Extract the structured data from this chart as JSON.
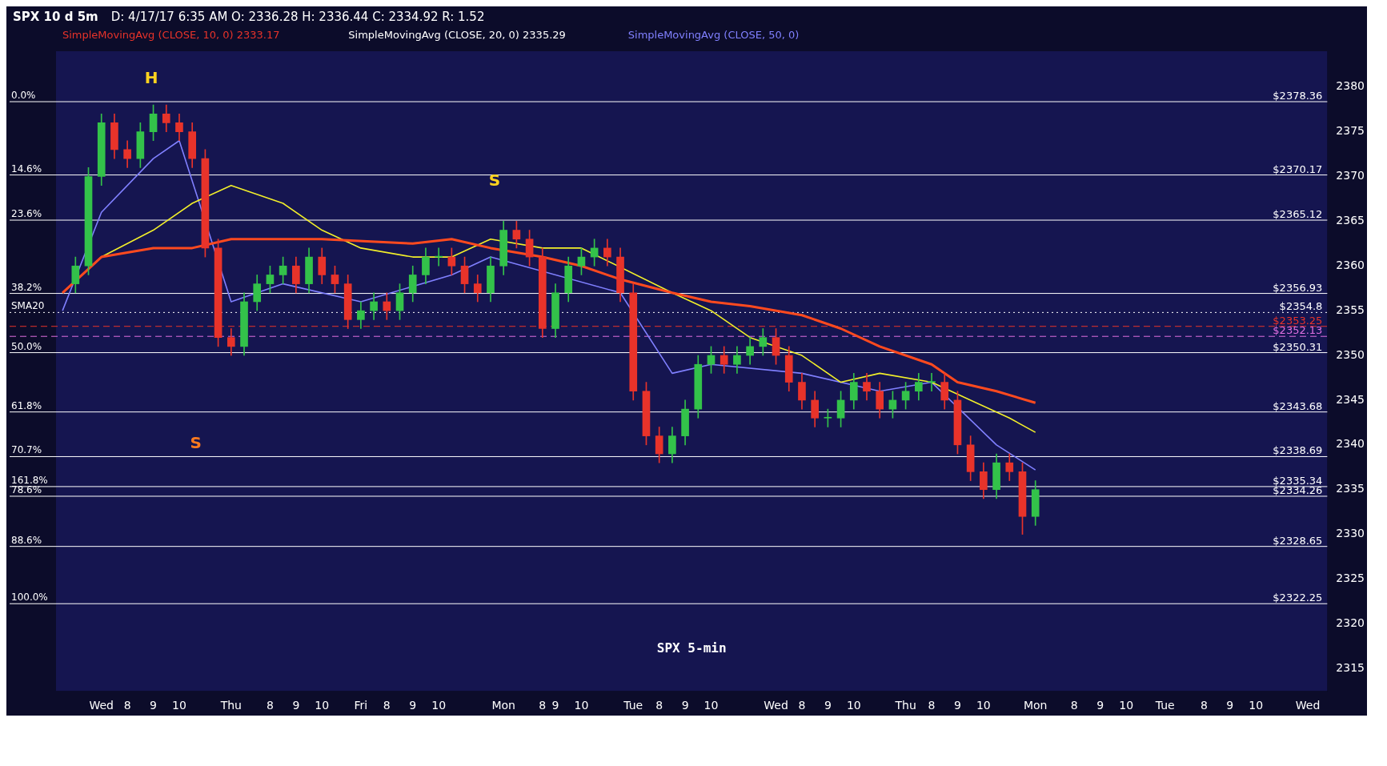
{
  "chart_data": {
    "type": "candlestick",
    "title": "SPX 10 d 5m",
    "subtitle": "D: 4/17/17 6:35 AM O: 2336.28 H: 2336.44 C: 2334.92 R: 1.52",
    "categories": [
      null,
      null,
      null,
      "Wed",
      null,
      "8",
      null,
      "9",
      null,
      "10",
      null,
      null,
      null,
      "Thu",
      null,
      null,
      "8",
      null,
      "9",
      null,
      "10",
      null,
      null,
      "Fri",
      null,
      "8",
      null,
      "9",
      null,
      "10",
      null,
      null,
      null,
      null,
      "Mon",
      null,
      null,
      "8",
      "9",
      null,
      "10",
      null,
      null,
      null,
      "Tue",
      null,
      "8",
      null,
      "9",
      null,
      "10",
      null,
      null,
      null,
      null,
      "Wed",
      null,
      "8",
      null,
      "9",
      null,
      "10",
      null,
      null,
      null,
      "Thu",
      null,
      "8",
      null,
      "9",
      null,
      "10",
      null,
      null,
      null,
      "Mon",
      null,
      null,
      "8",
      null,
      "9",
      null,
      "10",
      null,
      null,
      "Tue",
      null,
      null,
      "8",
      null,
      "9",
      null,
      "10",
      null,
      null,
      null,
      "Wed",
      null
    ],
    "ohlc": [
      null,
      [
        2358,
        2361,
        2357,
        2360
      ],
      [
        2360,
        2371,
        2359,
        2370
      ],
      [
        2370,
        2377,
        2369,
        2376
      ],
      [
        2376,
        2377,
        2372,
        2373
      ],
      [
        2373,
        2374,
        2371,
        2372
      ],
      [
        2372,
        2376,
        2371,
        2375
      ],
      [
        2375,
        2378,
        2374,
        2377
      ],
      [
        2377,
        2378,
        2375,
        2376
      ],
      [
        2376,
        2377,
        2374,
        2375
      ],
      [
        2375,
        2376,
        2371,
        2372
      ],
      [
        2372,
        2373,
        2361,
        2362
      ],
      [
        2362,
        2363,
        2351,
        2352
      ],
      [
        2352,
        2353,
        2350,
        2351
      ],
      [
        2351,
        2357,
        2350,
        2356
      ],
      [
        2356,
        2359,
        2355,
        2358
      ],
      [
        2358,
        2360,
        2357,
        2359
      ],
      [
        2359,
        2361,
        2358,
        2360
      ],
      [
        2360,
        2361,
        2357,
        2358
      ],
      [
        2358,
        2362,
        2357,
        2361
      ],
      [
        2361,
        2362,
        2358,
        2359
      ],
      [
        2359,
        2360,
        2357,
        2358
      ],
      [
        2358,
        2359,
        2353,
        2354
      ],
      [
        2354,
        2356,
        2353,
        2355
      ],
      [
        2355,
        2357,
        2354,
        2356
      ],
      [
        2356,
        2357,
        2354,
        2355
      ],
      [
        2355,
        2358,
        2354,
        2357
      ],
      [
        2357,
        2360,
        2356,
        2359
      ],
      [
        2359,
        2362,
        2358,
        2361
      ],
      [
        2361,
        2362,
        2360,
        2361
      ],
      [
        2361,
        2362,
        2359,
        2360
      ],
      [
        2360,
        2361,
        2357,
        2358
      ],
      [
        2358,
        2359,
        2356,
        2357
      ],
      [
        2357,
        2361,
        2356,
        2360
      ],
      [
        2360,
        2365,
        2359,
        2364
      ],
      [
        2364,
        2365,
        2362,
        2363
      ],
      [
        2363,
        2364,
        2360,
        2361
      ],
      [
        2361,
        2362,
        2352,
        2353
      ],
      [
        2353,
        2358,
        2352,
        2357
      ],
      [
        2357,
        2361,
        2356,
        2360
      ],
      [
        2360,
        2362,
        2359,
        2361
      ],
      [
        2361,
        2363,
        2360,
        2362
      ],
      [
        2362,
        2363,
        2360,
        2361
      ],
      [
        2361,
        2362,
        2356,
        2357
      ],
      [
        2357,
        2358,
        2345,
        2346
      ],
      [
        2346,
        2347,
        2340,
        2341
      ],
      [
        2341,
        2342,
        2338,
        2339
      ],
      [
        2339,
        2342,
        2338,
        2341
      ],
      [
        2341,
        2345,
        2340,
        2344
      ],
      [
        2344,
        2350,
        2343,
        2349
      ],
      [
        2349,
        2351,
        2348,
        2350
      ],
      [
        2350,
        2351,
        2348,
        2349
      ],
      [
        2349,
        2351,
        2348,
        2350
      ],
      [
        2350,
        2352,
        2349,
        2351
      ],
      [
        2351,
        2353,
        2350,
        2352
      ],
      [
        2352,
        2353,
        2349,
        2350
      ],
      [
        2350,
        2351,
        2346,
        2347
      ],
      [
        2347,
        2348,
        2344,
        2345
      ],
      [
        2345,
        2346,
        2342,
        2343
      ],
      [
        2343,
        2344,
        2342,
        2343
      ],
      [
        2343,
        2346,
        2342,
        2345
      ],
      [
        2345,
        2348,
        2344,
        2347
      ],
      [
        2347,
        2348,
        2345,
        2346
      ],
      [
        2346,
        2347,
        2343,
        2344
      ],
      [
        2344,
        2346,
        2343,
        2345
      ],
      [
        2345,
        2347,
        2344,
        2346
      ],
      [
        2346,
        2348,
        2345,
        2347
      ],
      [
        2347,
        2348,
        2346,
        2347
      ],
      [
        2347,
        2348,
        2344,
        2345
      ],
      [
        2345,
        2346,
        2339,
        2340
      ],
      [
        2340,
        2341,
        2336,
        2337
      ],
      [
        2337,
        2338,
        2334,
        2335
      ],
      [
        2335,
        2339,
        2334,
        2338
      ],
      [
        2338,
        2339,
        2336,
        2337
      ],
      [
        2337,
        2338,
        2330,
        2332
      ],
      [
        2332,
        2336,
        2331,
        2335
      ],
      null,
      null,
      null,
      null,
      null,
      null,
      null,
      null,
      null,
      null,
      null,
      null,
      null,
      null,
      null,
      null,
      null,
      null,
      null,
      null,
      null,
      null
    ],
    "colors": [
      null,
      "#33c24a",
      "#33c24a",
      "#33c24a",
      "#e8332a",
      "#e8332a",
      "#33c24a",
      "#33c24a",
      "#e8332a",
      "#e8332a",
      "#e8332a",
      "#e8332a",
      "#e8332a",
      "#e8332a",
      "#33c24a",
      "#33c24a",
      "#33c24a",
      "#33c24a",
      "#e8332a",
      "#33c24a",
      "#e8332a",
      "#e8332a",
      "#e8332a",
      "#33c24a",
      "#33c24a",
      "#e8332a",
      "#33c24a",
      "#33c24a",
      "#33c24a",
      "#33c24a",
      "#e8332a",
      "#e8332a",
      "#e8332a",
      "#33c24a",
      "#33c24a",
      "#e8332a",
      "#e8332a",
      "#e8332a",
      "#33c24a",
      "#33c24a",
      "#33c24a",
      "#33c24a",
      "#e8332a",
      "#e8332a",
      "#e8332a",
      "#e8332a",
      "#e8332a",
      "#33c24a",
      "#33c24a",
      "#33c24a",
      "#33c24a",
      "#e8332a",
      "#33c24a",
      "#33c24a",
      "#33c24a",
      "#e8332a",
      "#e8332a",
      "#e8332a",
      "#e8332a",
      "#33c24a",
      "#33c24a",
      "#33c24a",
      "#e8332a",
      "#e8332a",
      "#33c24a",
      "#33c24a",
      "#33c24a",
      "#33c24a",
      "#e8332a",
      "#e8332a",
      "#e8332a",
      "#e8332a",
      "#33c24a",
      "#e8332a",
      "#e8332a",
      "#33c24a",
      null,
      null,
      null,
      null,
      null,
      null,
      null,
      null,
      null,
      null,
      null,
      null,
      null,
      null,
      null,
      null,
      null,
      null,
      null,
      null,
      null,
      null
    ],
    "series": [
      {
        "type": "line",
        "color": "#ff4a1f",
        "values": [
          2357,
          null,
          null,
          2361,
          null,
          null,
          null,
          2362,
          null,
          null,
          2362,
          null,
          null,
          2363,
          null,
          null,
          null,
          null,
          null,
          null,
          2363,
          null,
          null,
          null,
          null,
          null,
          null,
          2362.5,
          null,
          null,
          2363,
          null,
          null,
          2362,
          null,
          null,
          null,
          2361,
          null,
          null,
          2360,
          null,
          null,
          2358.5,
          null,
          null,
          null,
          2357,
          null,
          null,
          2356,
          null,
          null,
          2355.5,
          null,
          null,
          null,
          2354.5,
          null,
          null,
          2353,
          null,
          null,
          2351,
          null,
          null,
          null,
          2349,
          null,
          2347,
          null,
          null,
          2346,
          null,
          null,
          2344.7,
          null,
          null,
          null,
          null,
          null,
          null,
          null,
          null,
          null,
          null,
          null,
          null,
          null,
          null,
          null,
          null,
          null,
          null,
          null,
          null,
          null,
          null
        ]
      },
      {
        "type": "line",
        "color": "#f2ef2a",
        "values": [
          2357,
          null,
          null,
          2361,
          null,
          null,
          null,
          2364,
          null,
          null,
          2367,
          null,
          null,
          2369,
          null,
          null,
          null,
          2367,
          null,
          null,
          2364,
          null,
          null,
          2362,
          null,
          null,
          null,
          2361,
          null,
          null,
          2361,
          null,
          null,
          2363,
          null,
          null,
          null,
          2362,
          null,
          null,
          2362,
          null,
          null,
          null,
          null,
          null,
          null,
          2357,
          null,
          null,
          2355,
          null,
          null,
          2352,
          null,
          null,
          null,
          2350,
          null,
          null,
          2347,
          null,
          null,
          2348,
          null,
          null,
          null,
          2347,
          null,
          null,
          2345,
          null,
          null,
          2343,
          null,
          2341.4,
          null,
          null,
          null,
          null,
          null,
          null,
          null,
          null,
          null,
          null,
          null,
          null,
          null,
          null,
          null,
          null,
          null,
          null,
          null,
          null,
          null,
          null
        ]
      },
      {
        "type": "line",
        "color": "#8080ff",
        "values": [
          2355,
          null,
          null,
          2366,
          null,
          null,
          null,
          2372,
          null,
          2374,
          null,
          null,
          null,
          2356,
          null,
          null,
          null,
          2358,
          null,
          null,
          null,
          null,
          null,
          2356,
          null,
          null,
          null,
          null,
          null,
          null,
          2359,
          null,
          null,
          2361,
          null,
          null,
          null,
          null,
          null,
          null,
          null,
          null,
          null,
          2357,
          null,
          null,
          null,
          2348,
          null,
          null,
          2349,
          null,
          null,
          null,
          null,
          null,
          null,
          2348,
          null,
          null,
          null,
          null,
          null,
          2346,
          null,
          null,
          null,
          2347,
          null,
          null,
          null,
          null,
          2340,
          null,
          null,
          2337.2,
          null,
          null,
          null,
          null,
          null,
          null,
          null,
          null,
          null,
          null,
          null,
          null,
          null,
          null,
          null,
          null,
          null,
          null,
          null,
          null,
          null,
          null
        ]
      }
    ],
    "ylim": [
      2312.5,
      2384
    ],
    "yticks": [
      2315,
      2320,
      2325,
      2330,
      2335,
      2340,
      2345,
      2350,
      2355,
      2360,
      2365,
      2370,
      2375,
      2380
    ],
    "ref_lines": [
      {
        "axis": "y",
        "value": 2378.36,
        "label": "$2378.36",
        "color": "#ffffff"
      },
      {
        "axis": "y",
        "value": 2370.17,
        "label": "$2370.17",
        "color": "#ffffff"
      },
      {
        "axis": "y",
        "value": 2365.12,
        "label": "$2365.12",
        "color": "#ffffff"
      },
      {
        "axis": "y",
        "value": 2356.93,
        "label": "$2356.93",
        "color": "#ffffff"
      },
      {
        "axis": "y",
        "value": 2354.8,
        "label": "$2354.8",
        "color": "#ffffff",
        "line_style": "dotted"
      },
      {
        "axis": "y",
        "value": 2353.25,
        "label": "$2353.25",
        "color": "#e8332a",
        "line_style": "dashed"
      },
      {
        "axis": "y",
        "value": 2352.13,
        "label": "$2352.13",
        "color": "#e070e0",
        "line_style": "dashed"
      },
      {
        "axis": "y",
        "value": 2350.31,
        "label": "$2350.31",
        "color": "#ffffff"
      },
      {
        "axis": "y",
        "value": 2343.68,
        "label": "$2343.68",
        "color": "#ffffff"
      },
      {
        "axis": "y",
        "value": 2338.69,
        "label": "$2338.69",
        "color": "#ffffff"
      },
      {
        "axis": "y",
        "value": 2335.34,
        "label": "$2335.34",
        "color": "#ffffff"
      },
      {
        "axis": "y",
        "value": 2334.26,
        "label": "$2334.26",
        "color": "#ffffff"
      },
      {
        "axis": "y",
        "value": 2328.65,
        "label": "$2328.65",
        "color": "#ffffff"
      },
      {
        "axis": "y",
        "value": 2322.25,
        "label": "$2322.25",
        "color": "#ffffff"
      }
    ],
    "annotations": [
      {
        "text": "0.0%",
        "y": 2378.36
      },
      {
        "text": "14.6%",
        "y": 2370.17
      },
      {
        "text": "23.6%",
        "y": 2365.12
      },
      {
        "text": "38.2%",
        "y": 2356.93
      },
      {
        "text": "SMA20",
        "y": 2354.8
      },
      {
        "text": "50.0%",
        "y": 2350.31
      },
      {
        "text": "61.8%",
        "y": 2343.68
      },
      {
        "text": "70.7%",
        "y": 2338.69
      },
      {
        "text": "161.8%",
        "y": 2335.34
      },
      {
        "text": "78.6%",
        "y": 2334.26
      },
      {
        "text": "88.6%",
        "y": 2328.65
      },
      {
        "text": "100.0%",
        "y": 2322.25
      },
      "H",
      "S",
      "S",
      "SimpleMovingAvg (CLOSE, 10, 0) 2333.17",
      "SimpleMovingAvg (CLOSE, 20, 0) 2335.29",
      "SimpleMovingAvg (CLOSE, 50, 0)",
      "SPX 5-min"
    ],
    "legend": false,
    "grid": false
  }
}
